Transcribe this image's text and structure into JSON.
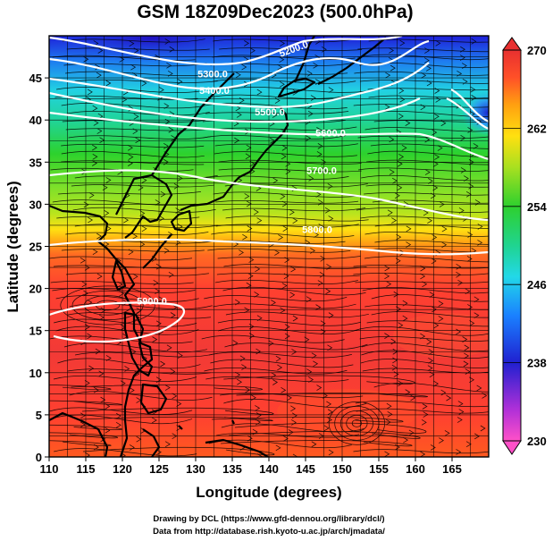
{
  "title": "GSM 18Z09Dec2023 (500.0hPa)",
  "x_axis": {
    "label": "Longitude (degrees)",
    "range": [
      110,
      170
    ],
    "ticks": [
      "110",
      "115",
      "120",
      "125",
      "130",
      "135",
      "140",
      "145",
      "150",
      "155",
      "160",
      "165"
    ]
  },
  "y_axis": {
    "label": "Latitude  (degrees)",
    "range": [
      0,
      50
    ],
    "ticks": [
      "0",
      "5",
      "10",
      "15",
      "20",
      "25",
      "30",
      "35",
      "40",
      "45"
    ]
  },
  "colorbar": {
    "range": [
      230,
      270
    ],
    "labels": [
      "270",
      "262",
      "254",
      "246",
      "238",
      "230"
    ],
    "colors": [
      "#ff50c8",
      "#8a2be2",
      "#1a1ad0",
      "#0a78ff",
      "#22d4e6",
      "#20d48a",
      "#2ed02e",
      "#a0e020",
      "#ffe010",
      "#ffa010",
      "#ff6020",
      "#ff3030",
      "#e03030"
    ]
  },
  "contours": [
    {
      "label": "5200.0",
      "lat": 48.5
    },
    {
      "label": "5300.0",
      "lat": 45.5
    },
    {
      "label": "5400.0",
      "lat": 43.5
    },
    {
      "label": "5500.0",
      "lat": 41.0
    },
    {
      "label": "5600.0",
      "lat": 38.5
    },
    {
      "label": "5700.0",
      "lat": 34.0
    },
    {
      "label": "5800.0",
      "lat": 27.0
    },
    {
      "label": "5900.0",
      "lat": 18.5
    }
  ],
  "credits": [
    "Drawing by DCL (https://www.gfd-dennou.org/library/dcl/)",
    "Data from http://database.rish.kyoto-u.ac.jp/arch/jmadata/"
  ],
  "chart_data": {
    "type": "heatmap",
    "variable": "Temperature (K), 500 hPa",
    "overlays": [
      "geopotential height contours",
      "wind streamlines"
    ],
    "lat": [
      0,
      5,
      10,
      15,
      20,
      25,
      30,
      35,
      40,
      45,
      50
    ],
    "temperature_by_lat": [
      268,
      268,
      267.5,
      267,
      266.5,
      265,
      258,
      254,
      251,
      249,
      243
    ],
    "contour_labels": [
      "5200.0",
      "5300.0",
      "5400.0",
      "5500.0",
      "5600.0",
      "5700.0",
      "5800.0",
      "5900.0"
    ]
  }
}
